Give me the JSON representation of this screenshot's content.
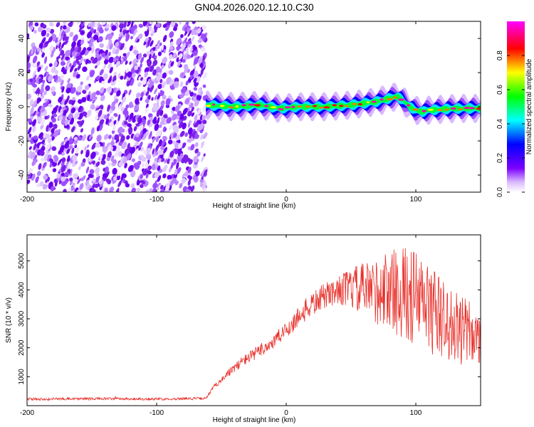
{
  "chart_data": [
    {
      "type": "heatmap",
      "title": "GN04.2026.020.12.10.C30",
      "xlabel": "Height of straight line (km)",
      "ylabel": "Frequency (Hz)",
      "xlim": [
        -200,
        150
      ],
      "ylim": [
        -50,
        50
      ],
      "xticks": [
        "-200",
        "-100",
        "0",
        "100"
      ],
      "yticks": [
        "40",
        "20",
        "0",
        "-20",
        "-40"
      ],
      "noise_region": {
        "x": [
          -200,
          -62
        ]
      },
      "ridge": {
        "x": [
          -62,
          -40,
          -20,
          -5,
          10,
          30,
          50,
          70,
          80,
          85,
          90,
          95,
          100,
          105,
          110,
          130,
          150
        ],
        "frequency": [
          1,
          0,
          1,
          -1,
          0,
          0,
          1,
          3,
          5,
          6,
          4,
          0,
          -2,
          -3,
          -2,
          -1,
          -1
        ]
      },
      "colorbar": {
        "label": "Normalized spectral amplitude",
        "range": [
          0.0,
          1.0
        ],
        "ticks": [
          "0.0",
          "0.2",
          "0.4",
          "0.6",
          "0.8"
        ],
        "colors": [
          "#ffffff",
          "#7b00ff",
          "#0000ff",
          "#00ffff",
          "#00ff00",
          "#ffff00",
          "#ff0000",
          "#ff00ff"
        ]
      }
    },
    {
      "type": "line",
      "xlabel": "Height of straight line (km)",
      "ylabel": "SNR (10 * v/v)",
      "xlim": [
        -200,
        150
      ],
      "ylim": [
        0,
        5900
      ],
      "xticks": [
        "-200",
        "-100",
        "0",
        "100"
      ],
      "yticks": [
        "5000",
        "4000",
        "3000",
        "2000",
        "1000"
      ],
      "color": "#e8302a",
      "series": [
        {
          "x": [
            -200,
            -150,
            -100,
            -62,
            -55,
            -45,
            -35,
            -20,
            -10,
            0,
            10,
            20,
            30,
            40,
            50,
            60,
            70,
            80,
            90,
            100,
            110,
            120,
            130,
            140,
            150
          ],
          "values": [
            230,
            240,
            230,
            250,
            700,
            1100,
            1500,
            1900,
            2200,
            2600,
            3100,
            3500,
            3800,
            4000,
            4050,
            4000,
            3950,
            4000,
            3900,
            3700,
            3400,
            3000,
            2700,
            2500,
            2400
          ]
        }
      ]
    }
  ]
}
